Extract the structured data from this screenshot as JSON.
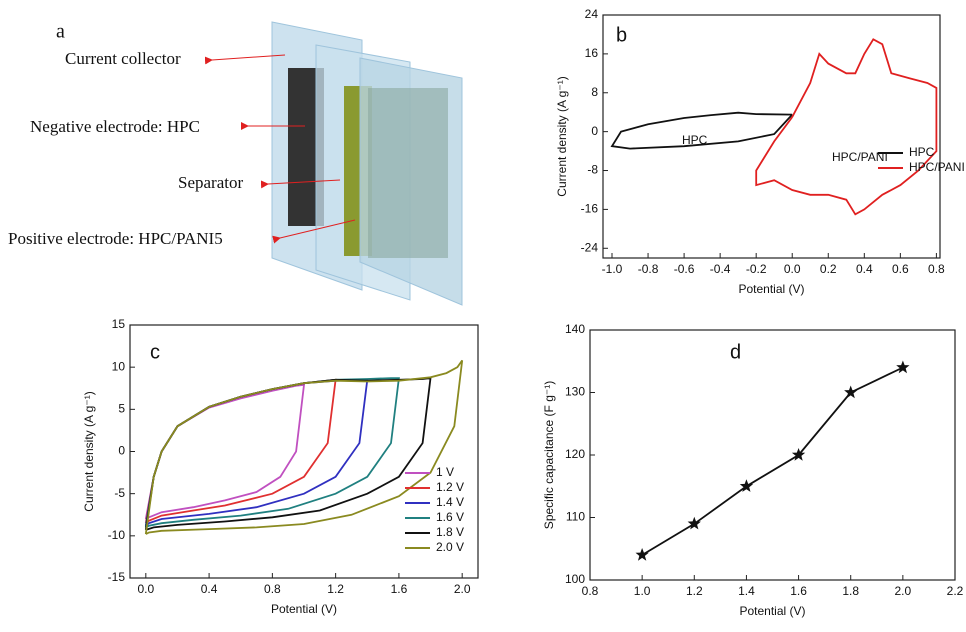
{
  "diagram_a": {
    "panel_label": "a",
    "labels": [
      "Current collector",
      "Negative electrode: HPC",
      "Separator",
      "Positive electrode: HPC/PANI5"
    ]
  },
  "chart_data": [
    {
      "type": "line",
      "panel_label": "b",
      "xlabel": "Potential (V)",
      "ylabel": "Current density (A g⁻¹)",
      "annotations": [
        "HPC",
        "HPC/PANI"
      ],
      "xlim": [
        -1.05,
        0.82
      ],
      "ylim": [
        -26,
        24
      ],
      "xticks": [
        {
          "value": -1,
          "label": "-1.0"
        },
        -0.8,
        -0.6,
        -0.4,
        -0.2,
        {
          "value": 0,
          "label": "0.0"
        },
        0.2,
        0.4,
        0.6,
        0.8
      ],
      "yticks": [
        24,
        16,
        8,
        0,
        -8,
        -16,
        -24
      ],
      "series": [
        {
          "name": "HPC",
          "color": "#111111",
          "x": [
            0,
            -0.2,
            -0.3,
            -0.45,
            -0.6,
            -0.8,
            -0.95,
            -1.0,
            -0.9,
            -0.6,
            -0.3,
            -0.1,
            0
          ],
          "values": [
            3.5,
            3.6,
            3.9,
            3.4,
            2.8,
            1.5,
            0,
            -3,
            -3.5,
            -3,
            -2,
            -0.5,
            3.5
          ]
        },
        {
          "name": "HPC/PANI",
          "color": "#e02020",
          "x": [
            0,
            0.1,
            0.15,
            0.2,
            0.3,
            0.35,
            0.4,
            0.45,
            0.5,
            0.55,
            0.65,
            0.75,
            0.8,
            0.8,
            0.7,
            0.6,
            0.5,
            0.4,
            0.35,
            0.3,
            0.2,
            0.1,
            0,
            -0.1,
            -0.2,
            -0.2,
            -0.1,
            0
          ],
          "values": [
            3,
            10,
            16,
            14,
            12,
            12,
            16,
            19,
            18,
            12,
            11,
            10,
            9,
            -4,
            -8,
            -11,
            -13,
            -16,
            -17,
            -14,
            -13,
            -13,
            -12,
            -10,
            -11,
            -8,
            -2,
            3
          ]
        }
      ]
    },
    {
      "type": "line",
      "panel_label": "c",
      "xlabel": "Potential (V)",
      "ylabel": "Current density (A g⁻¹)",
      "xlim": [
        -0.1,
        2.1
      ],
      "ylim": [
        -15,
        15
      ],
      "xticks": [
        {
          "value": 0,
          "label": "0.0"
        },
        0.4,
        0.8,
        1.2,
        1.6,
        {
          "value": 2,
          "label": "2.0"
        }
      ],
      "yticks": [
        15,
        10,
        5,
        0,
        -5,
        -10,
        -15
      ],
      "series": [
        {
          "name": "1 V",
          "color": "#c050c0",
          "x": [
            0,
            0.05,
            0.1,
            0.2,
            0.4,
            0.6,
            0.8,
            0.95,
            1.0,
            0.95,
            0.85,
            0.7,
            0.5,
            0.3,
            0.1,
            0.02,
            0
          ],
          "values": [
            -8,
            -3,
            0,
            3,
            5.2,
            6.3,
            7.2,
            7.8,
            7.9,
            0,
            -3,
            -4.8,
            -5.8,
            -6.6,
            -7.2,
            -7.8,
            -8
          ]
        },
        {
          "name": "1.2 V",
          "color": "#e03030",
          "x": [
            0,
            0.05,
            0.1,
            0.2,
            0.4,
            0.6,
            0.8,
            1.0,
            1.15,
            1.2,
            1.15,
            1.0,
            0.8,
            0.5,
            0.3,
            0.1,
            0.02,
            0
          ],
          "values": [
            -8.5,
            -3,
            0,
            3,
            5.3,
            6.5,
            7.4,
            8.1,
            8.4,
            8.5,
            1,
            -3,
            -5,
            -6.4,
            -7,
            -7.6,
            -8.2,
            -8.5
          ]
        },
        {
          "name": "1.4 V",
          "color": "#3030c0",
          "x": [
            0,
            0.05,
            0.1,
            0.2,
            0.4,
            0.6,
            0.8,
            1.0,
            1.2,
            1.35,
            1.4,
            1.35,
            1.2,
            1.0,
            0.7,
            0.4,
            0.1,
            0.02,
            0
          ],
          "values": [
            -8.8,
            -3,
            0,
            3,
            5.3,
            6.5,
            7.4,
            8.1,
            8.4,
            8.5,
            8.5,
            1,
            -3,
            -5,
            -6.6,
            -7.4,
            -8,
            -8.5,
            -8.8
          ]
        },
        {
          "name": "1.6 V",
          "color": "#208080",
          "x": [
            0,
            0.05,
            0.1,
            0.2,
            0.4,
            0.6,
            0.8,
            1.0,
            1.2,
            1.4,
            1.55,
            1.6,
            1.55,
            1.4,
            1.2,
            0.9,
            0.6,
            0.3,
            0.1,
            0.02,
            0
          ],
          "values": [
            -9,
            -3,
            0,
            3,
            5.3,
            6.5,
            7.4,
            8.1,
            8.5,
            8.6,
            8.7,
            8.7,
            1,
            -3,
            -5,
            -6.8,
            -7.6,
            -8.1,
            -8.5,
            -8.8,
            -9
          ]
        },
        {
          "name": "1.8 V",
          "color": "#111111",
          "x": [
            0,
            0.05,
            0.1,
            0.2,
            0.4,
            0.6,
            0.8,
            1.0,
            1.2,
            1.4,
            1.6,
            1.75,
            1.8,
            1.75,
            1.6,
            1.4,
            1.1,
            0.8,
            0.5,
            0.2,
            0.05,
            0
          ],
          "values": [
            -9.3,
            -3,
            0,
            3,
            5.3,
            6.5,
            7.4,
            8.1,
            8.5,
            8.4,
            8.5,
            8.6,
            8.7,
            1,
            -3,
            -5,
            -7,
            -7.8,
            -8.3,
            -8.7,
            -9,
            -9.3
          ]
        },
        {
          "name": "2.0 V",
          "color": "#8a8a20",
          "x": [
            0,
            0.05,
            0.1,
            0.2,
            0.4,
            0.6,
            0.8,
            1.0,
            1.2,
            1.4,
            1.6,
            1.8,
            1.9,
            1.97,
            2.0,
            1.95,
            1.8,
            1.6,
            1.3,
            1.0,
            0.7,
            0.4,
            0.1,
            0.02,
            0
          ],
          "values": [
            -9.8,
            -3,
            0,
            3,
            5.3,
            6.5,
            7.4,
            8.1,
            8.4,
            8.3,
            8.4,
            8.8,
            9.3,
            10,
            10.8,
            3,
            -2.5,
            -5.3,
            -7.5,
            -8.6,
            -9,
            -9.2,
            -9.4,
            -9.6,
            -9.8
          ]
        }
      ]
    },
    {
      "type": "line",
      "panel_label": "d",
      "xlabel": "Potential (V)",
      "ylabel": "Specific capacitance (F g⁻¹)",
      "xlim": [
        0.8,
        2.2
      ],
      "ylim": [
        100,
        140
      ],
      "xticks": [
        0.8,
        {
          "value": 1,
          "label": "1.0"
        },
        1.2,
        1.4,
        1.6,
        1.8,
        {
          "value": 2,
          "label": "2.0"
        },
        2.2
      ],
      "yticks": [
        100,
        110,
        120,
        130,
        140
      ],
      "markers": true,
      "series": [
        {
          "color": "#111111",
          "x": [
            1.0,
            1.2,
            1.4,
            1.6,
            1.8,
            2.0
          ],
          "values": [
            104,
            109,
            115,
            120,
            130,
            134
          ]
        }
      ]
    }
  ]
}
